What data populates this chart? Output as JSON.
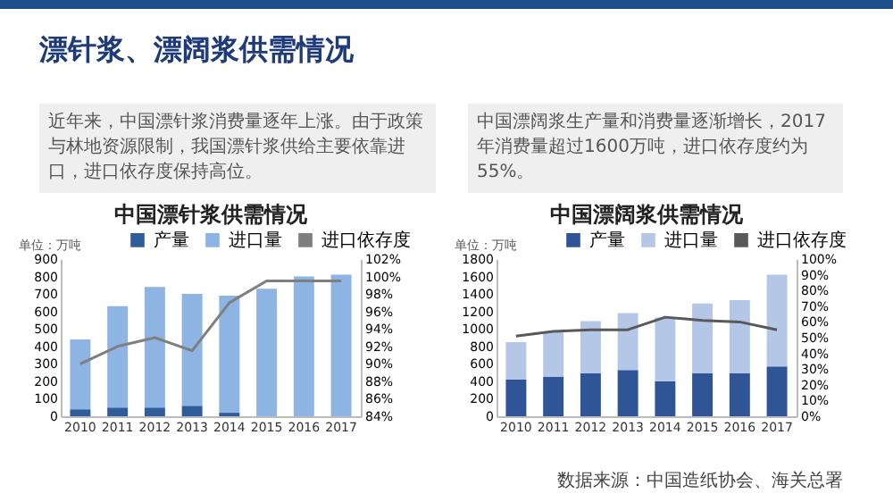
{
  "chart_data": [
    {
      "type": "other",
      "title": "漂针浆、漂阔浆供需情况",
      "annotations": [
        "近年来，中国漂针浆消费量逐年上涨。由于政策与林地资源限制，我国漂针浆供给主要依靠进口，进口依存度保持高位。",
        "中国漂阔浆生产量和消费量逐渐增长，2017年消费量超过1600万吨，进口依存度约为55%。"
      ]
    },
    {
      "type": "bar",
      "title": "中国漂针浆供需情况",
      "ylabel": "单位：万吨",
      "stacked": true,
      "legend": "top",
      "categories": [
        "2010",
        "2011",
        "2012",
        "2013",
        "2014",
        "2015",
        "2016",
        "2017"
      ],
      "series": [
        {
          "name": "产量",
          "color": "#2e5d9a",
          "values": [
            40,
            50,
            50,
            60,
            20,
            0,
            0,
            0
          ]
        },
        {
          "name": "进口量",
          "color": "#8eb4e3",
          "values": [
            400,
            580,
            690,
            640,
            670,
            730,
            800,
            810
          ]
        },
        {
          "name": "进口依存度",
          "type": "line",
          "axis": "y2",
          "color": "#7f7f7f",
          "values": [
            90,
            92,
            93,
            91.5,
            97,
            99.5,
            99.5,
            99.5
          ]
        }
      ],
      "ylim": [
        0,
        900
      ],
      "yticks": [
        0,
        100,
        200,
        300,
        400,
        500,
        600,
        700,
        800,
        900
      ],
      "y2lim": [
        84,
        102
      ],
      "y2ticks": [
        {
          "value": 84,
          "label": "84%"
        },
        {
          "value": 86,
          "label": "86%"
        },
        {
          "value": 88,
          "label": "88%"
        },
        {
          "value": 90,
          "label": "90%"
        },
        {
          "value": 92,
          "label": "92%"
        },
        {
          "value": 94,
          "label": "94%"
        },
        {
          "value": 96,
          "label": "96%"
        },
        {
          "value": 98,
          "label": "98%"
        },
        {
          "value": 100,
          "label": "100%"
        },
        {
          "value": 102,
          "label": "102%"
        }
      ]
    },
    {
      "type": "bar",
      "title": "中国漂阔浆供需情况",
      "ylabel": "单位：万吨",
      "stacked": true,
      "legend": "top",
      "categories": [
        "2010",
        "2011",
        "2012",
        "2013",
        "2014",
        "2015",
        "2016",
        "2017"
      ],
      "series": [
        {
          "name": "产量",
          "color": "#2f5597",
          "values": [
            420,
            450,
            490,
            530,
            400,
            490,
            490,
            570
          ]
        },
        {
          "name": "进口量",
          "color": "#b4c7e7",
          "values": [
            430,
            520,
            600,
            650,
            730,
            800,
            840,
            1050
          ]
        },
        {
          "name": "进口依存度",
          "type": "line",
          "axis": "y2",
          "color": "#595959",
          "values": [
            51,
            54,
            55,
            55,
            63,
            61,
            60,
            55
          ]
        }
      ],
      "ylim": [
        0,
        1800
      ],
      "yticks": [
        0,
        200,
        400,
        600,
        800,
        1000,
        1200,
        1400,
        1600,
        1800
      ],
      "y2lim": [
        0,
        100
      ],
      "y2ticks": [
        {
          "value": 0,
          "label": "0%"
        },
        {
          "value": 10,
          "label": "10%"
        },
        {
          "value": 20,
          "label": "20%"
        },
        {
          "value": 30,
          "label": "30%"
        },
        {
          "value": 40,
          "label": "40%"
        },
        {
          "value": 50,
          "label": "50%"
        },
        {
          "value": 60,
          "label": "60%"
        },
        {
          "value": 70,
          "label": "70%"
        },
        {
          "value": 80,
          "label": "80%"
        },
        {
          "value": 90,
          "label": "90%"
        },
        {
          "value": 100,
          "label": "100%"
        }
      ],
      "annotations": [
        "数据来源：中国造纸协会、海关总署"
      ]
    }
  ]
}
